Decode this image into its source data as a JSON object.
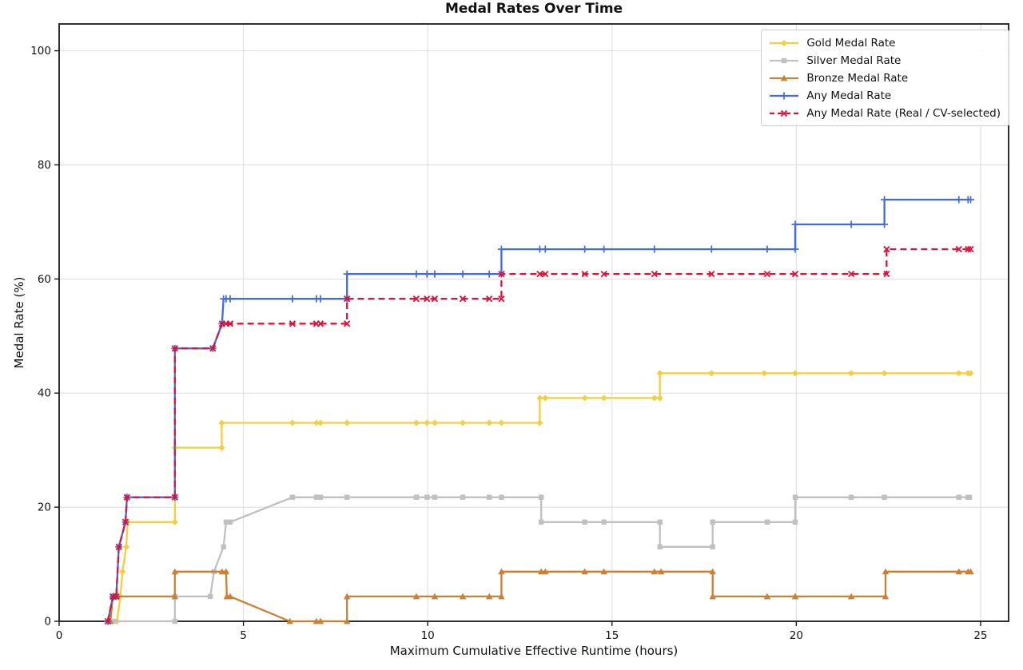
{
  "chart_data": {
    "type": "line",
    "title": "Medal Rates Over Time",
    "xlabel": "Maximum Cumulative Effective Runtime (hours)",
    "ylabel": "Medal Rate (%)",
    "xlim": [
      0,
      25.76
    ],
    "ylim": [
      0,
      104.7
    ],
    "xticks": [
      0,
      5,
      10,
      15,
      20,
      25
    ],
    "yticks": [
      0,
      20,
      40,
      60,
      80,
      100
    ],
    "grid": true,
    "grid_color": "#dcdcdc",
    "spine_color": "#1a1a1a",
    "legend_position": "upper right",
    "series": [
      {
        "name": "Gold Medal Rate",
        "color": "#F4CE3B",
        "marker": "diamond",
        "dash": null,
        "points": [
          [
            1.57,
            0
          ],
          [
            1.66,
            4.35
          ],
          [
            1.72,
            8.7
          ],
          [
            1.82,
            13.04
          ],
          [
            1.86,
            17.39
          ],
          [
            3.14,
            17.39
          ],
          [
            3.14,
            30.43
          ],
          [
            4.41,
            30.43
          ],
          [
            4.41,
            34.78
          ],
          [
            6.33,
            34.78
          ],
          [
            6.98,
            34.78
          ],
          [
            7.09,
            34.78
          ],
          [
            7.81,
            34.78
          ],
          [
            9.69,
            34.78
          ],
          [
            9.98,
            34.78
          ],
          [
            10.19,
            34.78
          ],
          [
            10.95,
            34.78
          ],
          [
            11.67,
            34.78
          ],
          [
            12.0,
            34.78
          ],
          [
            13.04,
            34.78
          ],
          [
            13.04,
            39.13
          ],
          [
            13.19,
            39.13
          ],
          [
            14.26,
            39.13
          ],
          [
            14.78,
            39.13
          ],
          [
            16.15,
            39.13
          ],
          [
            16.3,
            39.13
          ],
          [
            16.3,
            43.48
          ],
          [
            17.7,
            43.48
          ],
          [
            19.13,
            43.48
          ],
          [
            19.97,
            43.48
          ],
          [
            21.49,
            43.48
          ],
          [
            22.39,
            43.48
          ],
          [
            24.41,
            43.48
          ],
          [
            24.66,
            43.48
          ],
          [
            24.73,
            43.48
          ]
        ]
      },
      {
        "name": "Silver Medal Rate",
        "color": "#C0C0C0",
        "marker": "square",
        "dash": null,
        "points": [
          [
            1.5,
            0
          ],
          [
            3.14,
            0
          ],
          [
            3.14,
            4.35
          ],
          [
            4.1,
            4.35
          ],
          [
            4.2,
            8.7
          ],
          [
            4.46,
            13.04
          ],
          [
            4.53,
            17.39
          ],
          [
            4.64,
            17.39
          ],
          [
            6.33,
            21.74
          ],
          [
            6.98,
            21.74
          ],
          [
            7.09,
            21.74
          ],
          [
            7.81,
            21.74
          ],
          [
            9.69,
            21.74
          ],
          [
            9.98,
            21.74
          ],
          [
            10.19,
            21.74
          ],
          [
            10.95,
            21.74
          ],
          [
            11.67,
            21.74
          ],
          [
            12.0,
            21.74
          ],
          [
            13.08,
            21.74
          ],
          [
            13.08,
            17.39
          ],
          [
            14.26,
            17.39
          ],
          [
            14.78,
            17.39
          ],
          [
            16.3,
            17.39
          ],
          [
            16.3,
            13.04
          ],
          [
            17.73,
            13.04
          ],
          [
            17.73,
            17.39
          ],
          [
            19.21,
            17.39
          ],
          [
            19.97,
            17.39
          ],
          [
            19.97,
            21.74
          ],
          [
            21.49,
            21.74
          ],
          [
            22.39,
            21.74
          ],
          [
            24.41,
            21.74
          ],
          [
            24.66,
            21.74
          ],
          [
            24.7,
            21.74
          ]
        ]
      },
      {
        "name": "Bronze Medal Rate",
        "color": "#CD7F32",
        "marker": "triangle",
        "dash": null,
        "points": [
          [
            1.39,
            0
          ],
          [
            1.46,
            4.35
          ],
          [
            1.57,
            4.35
          ],
          [
            3.14,
            4.35
          ],
          [
            3.14,
            8.7
          ],
          [
            4.42,
            8.7
          ],
          [
            4.53,
            8.7
          ],
          [
            4.55,
            4.35
          ],
          [
            4.64,
            4.35
          ],
          [
            6.26,
            0
          ],
          [
            6.98,
            0
          ],
          [
            7.09,
            0
          ],
          [
            7.81,
            0
          ],
          [
            7.81,
            4.35
          ],
          [
            9.69,
            4.35
          ],
          [
            10.19,
            4.35
          ],
          [
            10.95,
            4.35
          ],
          [
            11.67,
            4.35
          ],
          [
            12.0,
            4.35
          ],
          [
            12.0,
            8.7
          ],
          [
            13.08,
            8.7
          ],
          [
            13.19,
            8.7
          ],
          [
            14.26,
            8.7
          ],
          [
            14.78,
            8.7
          ],
          [
            16.15,
            8.7
          ],
          [
            16.33,
            8.7
          ],
          [
            17.73,
            8.7
          ],
          [
            17.73,
            4.35
          ],
          [
            19.21,
            4.35
          ],
          [
            19.97,
            4.35
          ],
          [
            21.49,
            4.35
          ],
          [
            22.42,
            4.35
          ],
          [
            22.42,
            8.7
          ],
          [
            24.41,
            8.7
          ],
          [
            24.66,
            8.7
          ],
          [
            24.73,
            8.7
          ]
        ]
      },
      {
        "name": "Any Medal Rate",
        "color": "#4169E1",
        "marker": "plus",
        "dash": null,
        "points": [
          [
            1.32,
            0
          ],
          [
            1.46,
            4.35
          ],
          [
            1.55,
            4.35
          ],
          [
            1.62,
            13.04
          ],
          [
            1.8,
            17.39
          ],
          [
            1.84,
            21.74
          ],
          [
            3.14,
            21.74
          ],
          [
            3.14,
            47.83
          ],
          [
            4.17,
            47.83
          ],
          [
            4.42,
            52.17
          ],
          [
            4.46,
            56.52
          ],
          [
            4.53,
            56.52
          ],
          [
            4.64,
            56.52
          ],
          [
            6.33,
            56.52
          ],
          [
            6.98,
            56.52
          ],
          [
            7.09,
            56.52
          ],
          [
            7.81,
            56.52
          ],
          [
            7.81,
            60.87
          ],
          [
            9.69,
            60.87
          ],
          [
            9.98,
            60.87
          ],
          [
            10.19,
            60.87
          ],
          [
            10.95,
            60.87
          ],
          [
            11.67,
            60.87
          ],
          [
            12.0,
            60.87
          ],
          [
            12.0,
            65.22
          ],
          [
            13.04,
            65.22
          ],
          [
            13.19,
            65.22
          ],
          [
            14.26,
            65.22
          ],
          [
            14.78,
            65.22
          ],
          [
            16.15,
            65.22
          ],
          [
            17.7,
            65.22
          ],
          [
            19.21,
            65.22
          ],
          [
            19.97,
            65.22
          ],
          [
            19.97,
            69.57
          ],
          [
            21.49,
            69.57
          ],
          [
            22.39,
            69.57
          ],
          [
            22.39,
            73.91
          ],
          [
            24.41,
            73.91
          ],
          [
            24.66,
            73.91
          ],
          [
            24.73,
            73.91
          ]
        ]
      },
      {
        "name": "Any Medal Rate (Real / CV-selected)",
        "color": "#DC143C",
        "marker": "x",
        "dash": "8 5",
        "points": [
          [
            1.32,
            0
          ],
          [
            1.46,
            4.35
          ],
          [
            1.55,
            4.35
          ],
          [
            1.62,
            13.04
          ],
          [
            1.8,
            17.39
          ],
          [
            1.84,
            21.74
          ],
          [
            3.14,
            21.74
          ],
          [
            3.14,
            47.83
          ],
          [
            4.17,
            47.83
          ],
          [
            4.42,
            52.17
          ],
          [
            4.53,
            52.17
          ],
          [
            4.64,
            52.17
          ],
          [
            6.33,
            52.17
          ],
          [
            6.98,
            52.17
          ],
          [
            7.09,
            52.17
          ],
          [
            7.81,
            52.17
          ],
          [
            7.81,
            56.52
          ],
          [
            9.69,
            56.52
          ],
          [
            9.98,
            56.52
          ],
          [
            10.19,
            56.52
          ],
          [
            10.95,
            56.52
          ],
          [
            11.67,
            56.52
          ],
          [
            12.0,
            56.52
          ],
          [
            12.0,
            60.87
          ],
          [
            13.04,
            60.87
          ],
          [
            13.19,
            60.87
          ],
          [
            14.26,
            60.87
          ],
          [
            14.78,
            60.87
          ],
          [
            16.15,
            60.87
          ],
          [
            17.7,
            60.87
          ],
          [
            19.21,
            60.87
          ],
          [
            19.97,
            60.87
          ],
          [
            21.49,
            60.87
          ],
          [
            22.45,
            60.87
          ],
          [
            22.45,
            65.22
          ],
          [
            24.41,
            65.22
          ],
          [
            24.66,
            65.22
          ],
          [
            24.73,
            65.22
          ]
        ]
      }
    ]
  }
}
